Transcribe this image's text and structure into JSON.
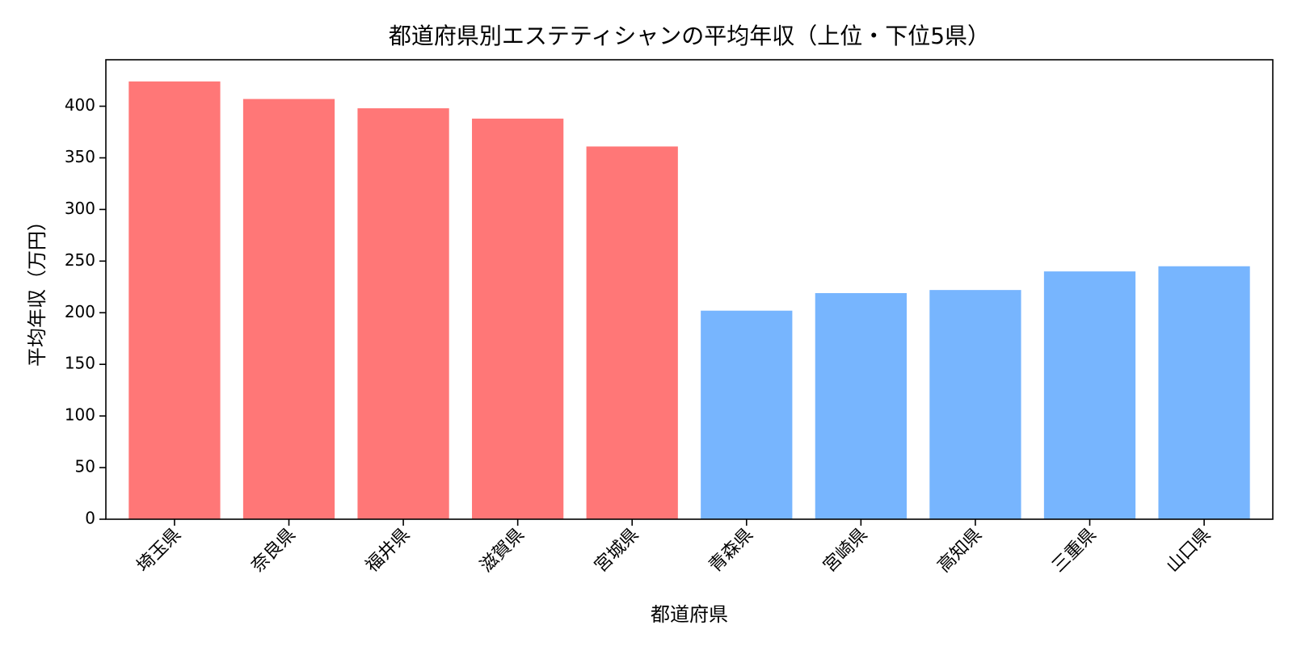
{
  "chart_data": {
    "type": "bar",
    "title": "都道府県別エステティシャンの平均年収（上位・下位5県）",
    "xlabel": "都道府県",
    "ylabel": "平均年収（万円）",
    "categories": [
      "埼玉県",
      "奈良県",
      "福井県",
      "滋賀県",
      "宮城県",
      "青森県",
      "宮崎県",
      "高知県",
      "三重県",
      "山口県"
    ],
    "values": [
      424,
      407,
      398,
      388,
      361,
      202,
      219,
      222,
      240,
      245
    ],
    "bar_colors": [
      "#ff7777",
      "#ff7777",
      "#ff7777",
      "#ff7777",
      "#ff7777",
      "#77b5fe",
      "#77b5fe",
      "#77b5fe",
      "#77b5fe",
      "#77b5fe"
    ],
    "ylim": [
      0,
      445
    ],
    "yticks": [
      0,
      50,
      100,
      150,
      200,
      250,
      300,
      350,
      400
    ],
    "grid": false,
    "legend": "none"
  }
}
